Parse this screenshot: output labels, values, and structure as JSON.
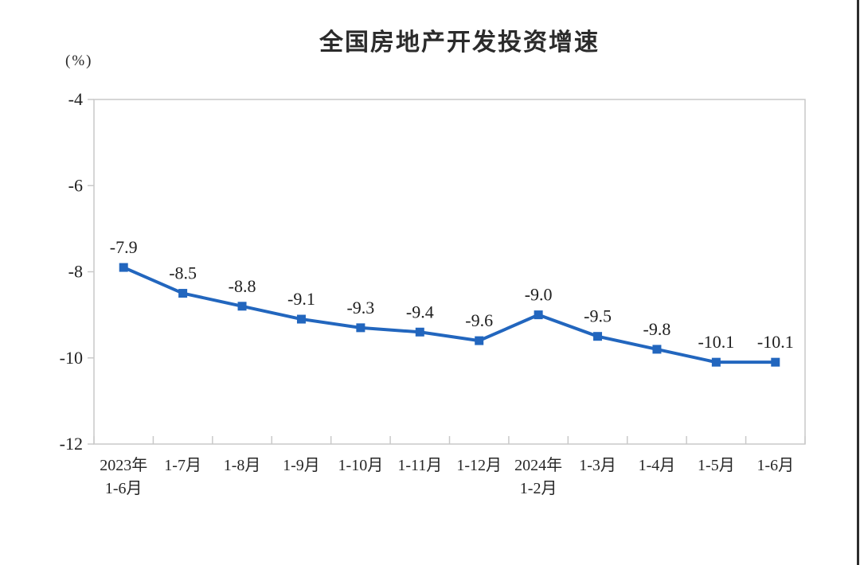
{
  "chart_data": {
    "type": "line",
    "title": "全国房地产开发投资增速",
    "ylabel": "(%)",
    "categories": [
      [
        "2023年",
        "1-6月"
      ],
      [
        "1-7月"
      ],
      [
        "1-8月"
      ],
      [
        "1-9月"
      ],
      [
        "1-10月"
      ],
      [
        "1-11月"
      ],
      [
        "1-12月"
      ],
      [
        "2024年",
        "1-2月"
      ],
      [
        "1-3月"
      ],
      [
        "1-4月"
      ],
      [
        "1-5月"
      ],
      [
        "1-6月"
      ]
    ],
    "values": [
      -7.9,
      -8.5,
      -8.8,
      -9.1,
      -9.3,
      -9.4,
      -9.6,
      -9.0,
      -9.5,
      -9.8,
      -10.1,
      -10.1
    ],
    "labels": [
      "-7.9",
      "-8.5",
      "-8.8",
      "-9.1",
      "-9.3",
      "-9.4",
      "-9.6",
      "-9.0",
      "-9.5",
      "-9.8",
      "-10.1",
      "-10.1"
    ],
    "ylim": [
      -12,
      -4
    ],
    "yticks": [
      -4,
      -6,
      -8,
      -10,
      -12
    ],
    "line_color": "#2266BE",
    "axis_color": "#c9c9c9",
    "marker": "square",
    "grid": false,
    "legend": "none"
  }
}
